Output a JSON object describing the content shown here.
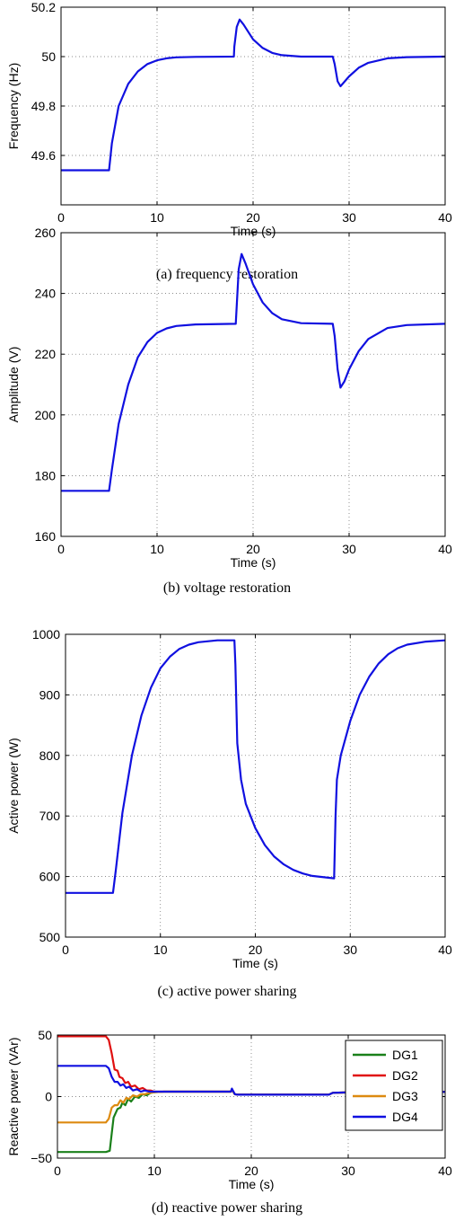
{
  "chart_data": [
    {
      "type": "line",
      "xlabel": "Time (s)",
      "ylabel": "Frequency (Hz)",
      "xlim": [
        0,
        40
      ],
      "ylim": [
        49.4,
        50.2
      ],
      "xticks": [
        "0",
        "10",
        "20",
        "30",
        "40"
      ],
      "yticks": [
        "49.6",
        "49.8",
        "50",
        "50.2"
      ],
      "grid": "dotted",
      "caption": "(a) frequency restoration",
      "series": [
        {
          "color": "#1010e0",
          "points": [
            [
              0,
              49.54
            ],
            [
              5,
              49.54
            ],
            [
              5.3,
              49.65
            ],
            [
              6,
              49.8
            ],
            [
              7,
              49.89
            ],
            [
              8,
              49.94
            ],
            [
              9,
              49.97
            ],
            [
              10,
              49.985
            ],
            [
              11,
              49.993
            ],
            [
              12,
              49.997
            ],
            [
              14,
              49.999
            ],
            [
              18,
              50.0
            ],
            [
              18.05,
              50.04
            ],
            [
              18.3,
              50.12
            ],
            [
              18.6,
              50.15
            ],
            [
              19,
              50.13
            ],
            [
              20,
              50.07
            ],
            [
              21,
              50.035
            ],
            [
              22,
              50.015
            ],
            [
              23,
              50.006
            ],
            [
              25,
              50.0
            ],
            [
              28.3,
              50.0
            ],
            [
              28.5,
              49.97
            ],
            [
              28.8,
              49.9
            ],
            [
              29.1,
              49.88
            ],
            [
              30,
              49.92
            ],
            [
              31,
              49.955
            ],
            [
              32,
              49.975
            ],
            [
              34,
              49.993
            ],
            [
              36,
              49.998
            ],
            [
              40,
              50.0
            ]
          ]
        }
      ]
    },
    {
      "type": "line",
      "xlabel": "Time (s)",
      "ylabel": "Amplitude (V)",
      "xlim": [
        0,
        40
      ],
      "ylim": [
        160,
        260
      ],
      "xticks": [
        "0",
        "10",
        "20",
        "30",
        "40"
      ],
      "yticks": [
        "160",
        "180",
        "200",
        "220",
        "240",
        "260"
      ],
      "grid": "dotted",
      "caption": "(b) voltage restoration",
      "series": [
        {
          "color": "#1010e0",
          "points": [
            [
              0,
              175
            ],
            [
              5,
              175
            ],
            [
              5.3,
              182
            ],
            [
              6,
              197
            ],
            [
              7,
              210
            ],
            [
              8,
              219
            ],
            [
              9,
              224
            ],
            [
              10,
              227
            ],
            [
              11,
              228.5
            ],
            [
              12,
              229.3
            ],
            [
              14,
              229.8
            ],
            [
              18.2,
              230
            ],
            [
              18.3,
              236
            ],
            [
              18.5,
              248
            ],
            [
              18.8,
              253
            ],
            [
              19.2,
              250
            ],
            [
              20,
              243
            ],
            [
              21,
              237
            ],
            [
              22,
              233.5
            ],
            [
              23,
              231.5
            ],
            [
              25,
              230.2
            ],
            [
              28.3,
              230
            ],
            [
              28.5,
              226
            ],
            [
              28.8,
              215
            ],
            [
              29.1,
              209
            ],
            [
              29.5,
              211
            ],
            [
              30,
              215
            ],
            [
              31,
              221
            ],
            [
              32,
              225
            ],
            [
              34,
              228.6
            ],
            [
              36,
              229.6
            ],
            [
              40,
              230
            ]
          ]
        }
      ]
    },
    {
      "type": "line",
      "xlabel": "Time (s)",
      "ylabel": "Active power (W)",
      "xlim": [
        0,
        40
      ],
      "ylim": [
        500,
        1000
      ],
      "xticks": [
        "0",
        "10",
        "20",
        "30",
        "40"
      ],
      "yticks": [
        "500",
        "600",
        "700",
        "800",
        "900",
        "1000"
      ],
      "grid": "dotted",
      "caption": "(c) active power sharing",
      "series": [
        {
          "color": "#1010e0",
          "points": [
            [
              0,
              573
            ],
            [
              5,
              573
            ],
            [
              5.3,
              610
            ],
            [
              6,
              705
            ],
            [
              7,
              800
            ],
            [
              8,
              866
            ],
            [
              9,
              912
            ],
            [
              10,
              944
            ],
            [
              11,
              963
            ],
            [
              12,
              976
            ],
            [
              13,
              983
            ],
            [
              14,
              987
            ],
            [
              16,
              990
            ],
            [
              17.8,
              990
            ],
            [
              17.9,
              950
            ],
            [
              18.1,
              820
            ],
            [
              18.5,
              760
            ],
            [
              19,
              720
            ],
            [
              20,
              680
            ],
            [
              21,
              652
            ],
            [
              22,
              633
            ],
            [
              23,
              620
            ],
            [
              24,
              611
            ],
            [
              25,
              605
            ],
            [
              26,
              601
            ],
            [
              28.3,
              597
            ],
            [
              28.45,
              700
            ],
            [
              28.6,
              760
            ],
            [
              29,
              800
            ],
            [
              30,
              857
            ],
            [
              31,
              900
            ],
            [
              32,
              930
            ],
            [
              33,
              952
            ],
            [
              34,
              967
            ],
            [
              35,
              977
            ],
            [
              36,
              983
            ],
            [
              38,
              988
            ],
            [
              40,
              990
            ]
          ]
        }
      ]
    },
    {
      "type": "line",
      "xlabel": "Time (s)",
      "ylabel": "Reactive power (VAr)",
      "xlim": [
        0,
        40
      ],
      "ylim": [
        -50,
        50
      ],
      "xticks": [
        "0",
        "10",
        "20",
        "30",
        "40"
      ],
      "yticks": [
        "−50",
        "0",
        "50"
      ],
      "grid": "dotted",
      "caption": "(d) reactive power sharing",
      "legend": "top-right",
      "series": [
        {
          "name": "DG1",
          "color": "#1a801a",
          "points": [
            [
              0,
              -45
            ],
            [
              5,
              -45
            ],
            [
              5.4,
              -44
            ],
            [
              5.6,
              -30
            ],
            [
              5.8,
              -17
            ],
            [
              6.2,
              -10
            ],
            [
              6.5,
              -9
            ],
            [
              6.7,
              -5
            ],
            [
              7,
              -7
            ],
            [
              7.3,
              -2
            ],
            [
              7.6,
              -4
            ],
            [
              8,
              0
            ],
            [
              8.4,
              -1
            ],
            [
              8.8,
              2
            ],
            [
              9.2,
              1
            ],
            [
              9.6,
              3
            ],
            [
              10,
              3.5
            ],
            [
              11,
              4
            ],
            [
              17.9,
              4
            ],
            [
              18,
              5.5
            ],
            [
              18.3,
              2
            ],
            [
              18.6,
              1.5
            ],
            [
              20,
              1.5
            ],
            [
              28,
              1.5
            ],
            [
              28.4,
              3
            ],
            [
              29,
              3.2
            ],
            [
              31,
              3.5
            ],
            [
              40,
              3.8
            ]
          ]
        },
        {
          "name": "DG2",
          "color": "#e01010",
          "points": [
            [
              0,
              49
            ],
            [
              5,
              49
            ],
            [
              5.3,
              46
            ],
            [
              5.6,
              35
            ],
            [
              5.9,
              22
            ],
            [
              6.2,
              21
            ],
            [
              6.4,
              16
            ],
            [
              6.7,
              15
            ],
            [
              7,
              11
            ],
            [
              7.3,
              12
            ],
            [
              7.6,
              8
            ],
            [
              8,
              9
            ],
            [
              8.4,
              6
            ],
            [
              8.8,
              7
            ],
            [
              9.2,
              5
            ],
            [
              9.6,
              5
            ],
            [
              10,
              4
            ],
            [
              11,
              4
            ],
            [
              17.9,
              4
            ],
            [
              18,
              6
            ],
            [
              18.3,
              2
            ],
            [
              18.6,
              1.5
            ],
            [
              20,
              1.5
            ],
            [
              28,
              1.5
            ],
            [
              28.4,
              3
            ],
            [
              29,
              3.2
            ],
            [
              31,
              3.5
            ],
            [
              40,
              3.8
            ]
          ]
        },
        {
          "name": "DG3",
          "color": "#dd8a10",
          "points": [
            [
              0,
              -21
            ],
            [
              5,
              -21
            ],
            [
              5.3,
              -18
            ],
            [
              5.6,
              -9
            ],
            [
              5.9,
              -7
            ],
            [
              6.2,
              -7
            ],
            [
              6.5,
              -3
            ],
            [
              6.8,
              -5
            ],
            [
              7.1,
              -1
            ],
            [
              7.4,
              -2
            ],
            [
              7.8,
              1
            ],
            [
              8.2,
              0
            ],
            [
              8.6,
              2
            ],
            [
              9,
              2
            ],
            [
              9.5,
              3
            ],
            [
              10,
              3.5
            ],
            [
              11,
              4
            ],
            [
              17.9,
              4
            ],
            [
              18,
              5.5
            ],
            [
              18.3,
              2
            ],
            [
              18.6,
              1.5
            ],
            [
              20,
              1.5
            ],
            [
              28,
              1.5
            ],
            [
              28.4,
              3
            ],
            [
              29,
              3.2
            ],
            [
              31,
              3.5
            ],
            [
              40,
              3.8
            ]
          ]
        },
        {
          "name": "DG4",
          "color": "#1010e0",
          "points": [
            [
              0,
              25
            ],
            [
              5,
              25
            ],
            [
              5.3,
              23
            ],
            [
              5.6,
              16
            ],
            [
              5.9,
              12
            ],
            [
              6.2,
              12
            ],
            [
              6.5,
              9
            ],
            [
              6.8,
              10
            ],
            [
              7.1,
              7
            ],
            [
              7.4,
              8
            ],
            [
              7.8,
              5
            ],
            [
              8.2,
              6
            ],
            [
              8.6,
              4
            ],
            [
              9,
              5
            ],
            [
              9.5,
              4
            ],
            [
              10,
              4
            ],
            [
              11,
              4
            ],
            [
              17.9,
              4
            ],
            [
              18,
              6.5
            ],
            [
              18.3,
              2
            ],
            [
              18.6,
              1.5
            ],
            [
              20,
              1.5
            ],
            [
              28,
              1.5
            ],
            [
              28.4,
              3
            ],
            [
              29,
              3.2
            ],
            [
              31,
              3.5
            ],
            [
              40,
              3.8
            ]
          ]
        }
      ]
    }
  ]
}
